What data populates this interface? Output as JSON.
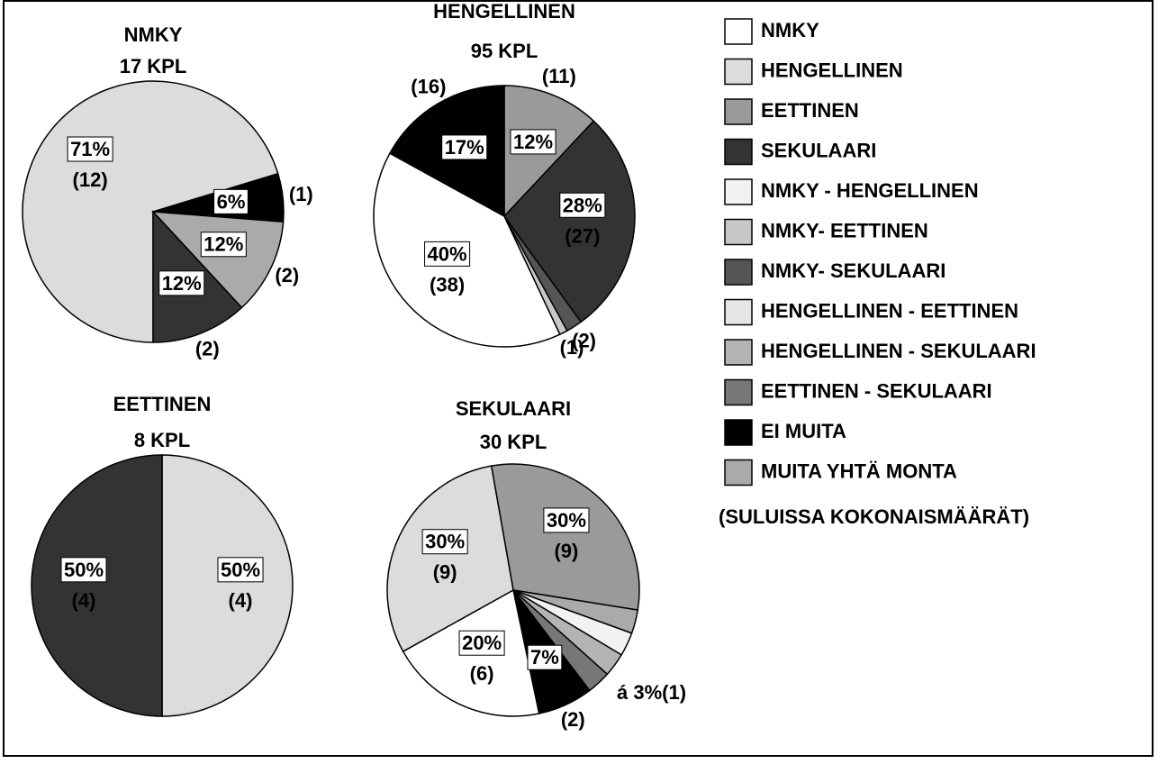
{
  "chart_data": [
    {
      "type": "pie",
      "title": "NMKY",
      "subtitle": "17 KPL",
      "startangle": 180,
      "categories": [
        "HENGELLINEN",
        "EI MUITA",
        "MUITA YHTÄ MONTA",
        "SEKULAARI"
      ],
      "values": [
        71,
        6,
        12,
        12
      ],
      "value_labels": [
        "71%",
        "6%",
        "12%",
        "12%"
      ],
      "counts": [
        12,
        1,
        2,
        2
      ],
      "count_labels": [
        "(12)",
        "(1)",
        "(2)",
        "(2)"
      ]
    },
    {
      "type": "pie",
      "title": "HENGELLINEN",
      "subtitle": "95 KPL",
      "startangle": 0,
      "categories": [
        "EETTINEN",
        "SEKULAARI",
        "NMKY- SEKULAARI",
        "NMKY- EETTINEN",
        "NMKY",
        "EI MUITA"
      ],
      "values": [
        12,
        28,
        2,
        1,
        40,
        17
      ],
      "value_labels": [
        "12%",
        "28%",
        null,
        null,
        "40%",
        "17%"
      ],
      "counts": [
        11,
        27,
        2,
        1,
        38,
        16
      ],
      "count_labels": [
        "(11)",
        "(27)",
        "(2)",
        "(1)",
        "(38)",
        "(16)"
      ]
    },
    {
      "type": "pie",
      "title": "EETTINEN",
      "subtitle": "8  KPL",
      "startangle": 0,
      "categories": [
        "HENGELLINEN",
        "SEKULAARI"
      ],
      "values": [
        50,
        50
      ],
      "value_labels": [
        "50%",
        "50%"
      ],
      "counts": [
        4,
        4
      ],
      "count_labels": [
        "(4)",
        "(4)"
      ]
    },
    {
      "type": "pie",
      "title": "SEKULAARI",
      "subtitle": "30 KPL",
      "startangle": -10,
      "categories": [
        "EETTINEN",
        "MUITA YHTÄ MONTA",
        "NMKY - HENGELLINEN",
        "HENGELLINEN - SEKULAARI",
        "EETTINEN - SEKULAARI",
        "EI MUITA",
        "NMKY",
        "HENGELLINEN"
      ],
      "values": [
        30,
        3,
        3,
        3,
        3,
        7,
        20,
        30
      ],
      "value_labels": [
        "30%",
        null,
        null,
        null,
        null,
        "7%",
        "20%",
        "30%"
      ],
      "counts": [
        9,
        1,
        1,
        1,
        1,
        2,
        6,
        9
      ],
      "count_labels": [
        "(9)",
        null,
        null,
        null,
        null,
        "(2)",
        "(6)",
        "(9)"
      ],
      "annotation": "á 3%(1)"
    }
  ],
  "legend": {
    "items": [
      {
        "name": "NMKY",
        "color": "#ffffff"
      },
      {
        "name": "HENGELLINEN",
        "color": "#dcdcdc"
      },
      {
        "name": "EETTINEN",
        "color": "#9a9a9a"
      },
      {
        "name": "SEKULAARI",
        "color": "#333333"
      },
      {
        "name": "NMKY - HENGELLINEN",
        "color": "#f2f2f2"
      },
      {
        "name": "NMKY- EETTINEN",
        "color": "#c8c8c8"
      },
      {
        "name": "NMKY- SEKULAARI",
        "color": "#555555"
      },
      {
        "name": "HENGELLINEN - EETTINEN",
        "color": "#e6e6e6"
      },
      {
        "name": "HENGELLINEN - SEKULAARI",
        "color": "#b4b4b4"
      },
      {
        "name": "EETTINEN - SEKULAARI",
        "color": "#777777"
      },
      {
        "name": "EI MUITA",
        "color": "#000000"
      },
      {
        "name": "MUITA YHTÄ MONTA",
        "color": "#aaaaaa"
      }
    ],
    "note": "(SULUISSA KOKONAISMÄÄRÄT)"
  }
}
